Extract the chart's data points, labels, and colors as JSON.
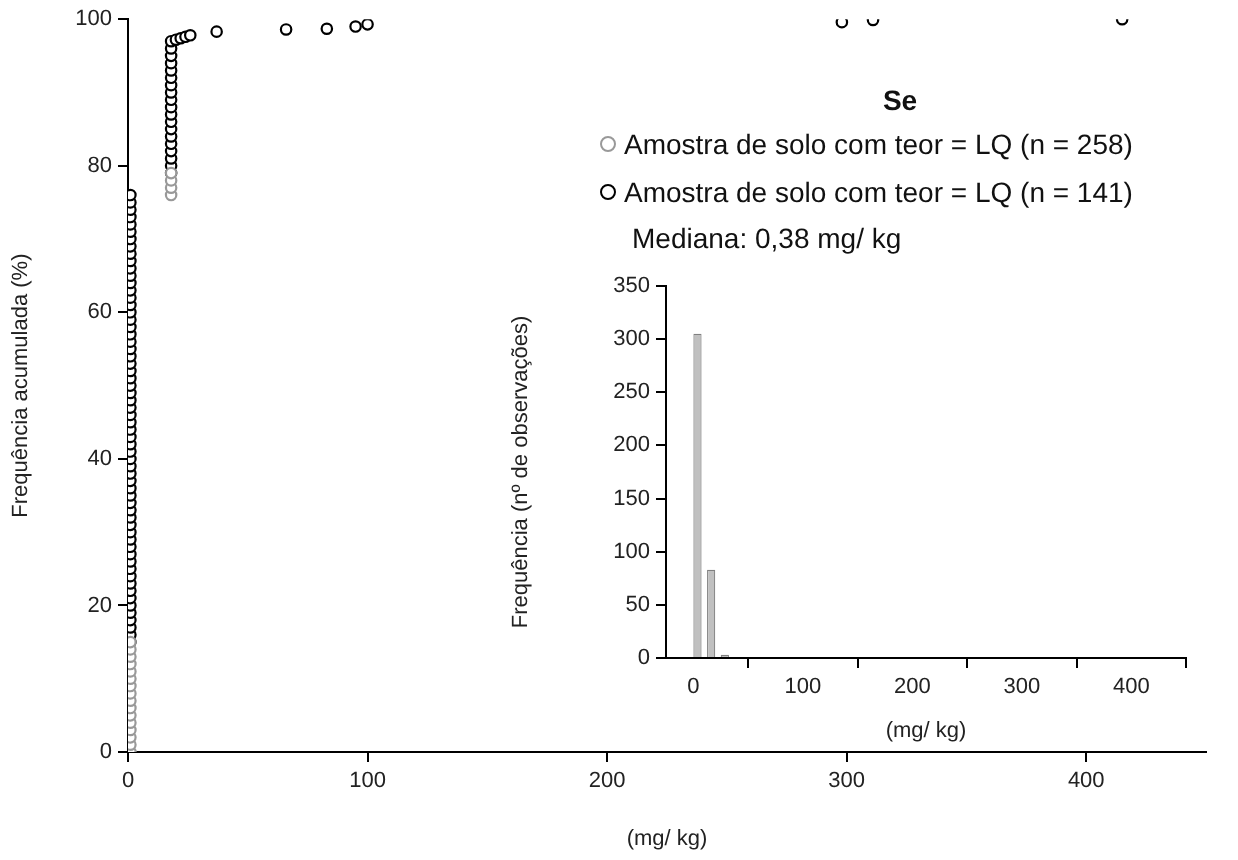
{
  "chart_data": [
    {
      "type": "scatter",
      "title": "Se",
      "xlabel": "(mg/ kg)",
      "ylabel": "Frequência acumulada (%)",
      "xlim": [
        0,
        450
      ],
      "ylim": [
        0,
        100
      ],
      "xticks": [
        0,
        100,
        200,
        300,
        400
      ],
      "yticks": [
        0,
        20,
        40,
        60,
        80,
        100
      ],
      "marker": "circle",
      "legend": "top right",
      "annotations": [
        "Mediana: 0,38 mg/ kg"
      ],
      "series": [
        {
          "name": "Amostra de solo com teor = LQ (n = 258)",
          "color": "#999999",
          "x": [
            1,
            1,
            1,
            1,
            1,
            1,
            1,
            1,
            1,
            1,
            1,
            1,
            1,
            1,
            1,
            1,
            18,
            18,
            18,
            18
          ],
          "values": [
            0,
            1,
            2,
            3,
            4,
            5,
            6,
            7,
            8,
            9,
            10,
            11,
            12,
            13,
            14,
            15,
            76,
            77,
            78,
            79
          ]
        },
        {
          "name": "Amostra de solo com teor = LQ (n = 141)",
          "color": "#000000",
          "x": [
            1,
            1,
            1,
            1,
            1,
            1,
            1,
            1,
            1,
            1,
            1,
            1,
            1,
            1,
            1,
            1,
            1,
            1,
            1,
            1,
            1,
            1,
            1,
            1,
            1,
            1,
            1,
            1,
            1,
            1,
            1,
            1,
            1,
            1,
            1,
            1,
            1,
            1,
            1,
            1,
            1,
            1,
            1,
            1,
            1,
            1,
            1,
            1,
            1,
            1,
            1,
            1,
            1,
            1,
            1,
            1,
            1,
            1,
            1,
            1,
            1,
            1,
            18,
            18,
            18,
            18,
            18,
            18,
            18,
            18,
            18,
            18,
            18,
            18,
            18,
            18,
            18,
            18,
            18,
            18,
            18,
            20,
            22,
            24,
            26,
            37,
            66,
            83,
            95,
            100,
            298,
            311,
            415
          ],
          "values": [
            15,
            16,
            17,
            18,
            19,
            20,
            21,
            22,
            23,
            24,
            25,
            26,
            27,
            28,
            29,
            30,
            31,
            32,
            33,
            34,
            35,
            36,
            37,
            38,
            39,
            40,
            41,
            42,
            43,
            44,
            45,
            46,
            47,
            48,
            49,
            50,
            51,
            52,
            53,
            54,
            55,
            56,
            57,
            58,
            59,
            60,
            61,
            62,
            63,
            64,
            65,
            66,
            67,
            68,
            69,
            70,
            71,
            72,
            73,
            74,
            75,
            76,
            79,
            80,
            81,
            82,
            83,
            84,
            85,
            86,
            87,
            88,
            89,
            90,
            91,
            92,
            93,
            94,
            95,
            96,
            97,
            97.2,
            97.4,
            97.6,
            97.8,
            98.3,
            98.6,
            98.7,
            99,
            99.3,
            99.6,
            99.9,
            100
          ]
        }
      ]
    },
    {
      "type": "histogram",
      "xlabel": "(mg/ kg)",
      "ylabel": "Frequência (nº de observações)",
      "color": "#c0c0c0",
      "xlim": [
        -25,
        450
      ],
      "ylim": [
        0,
        350
      ],
      "xticks": [
        0,
        100,
        200,
        300,
        400
      ],
      "yticks": [
        0,
        50,
        100,
        150,
        200,
        250,
        300,
        350
      ],
      "bins": [
        -2.5,
        10,
        22.5,
        35,
        47.5,
        60,
        72.5,
        85,
        97.5,
        110,
        122.5,
        135,
        147.5,
        160,
        172.5,
        185,
        197.5,
        210,
        222.5,
        235,
        247.5,
        260,
        272.5,
        285,
        297.5,
        310,
        322.5,
        335,
        347.5,
        360,
        372.5,
        385,
        397.5,
        410,
        422.5,
        435,
        447.5
      ],
      "values": [
        305,
        83,
        3,
        1,
        0,
        1,
        1,
        1,
        1,
        0,
        0,
        0,
        0,
        0,
        0,
        0,
        0,
        0,
        0,
        0,
        0,
        0,
        0,
        1,
        1,
        0,
        0,
        0,
        0,
        0,
        0,
        0,
        0,
        1,
        1,
        0
      ]
    }
  ]
}
